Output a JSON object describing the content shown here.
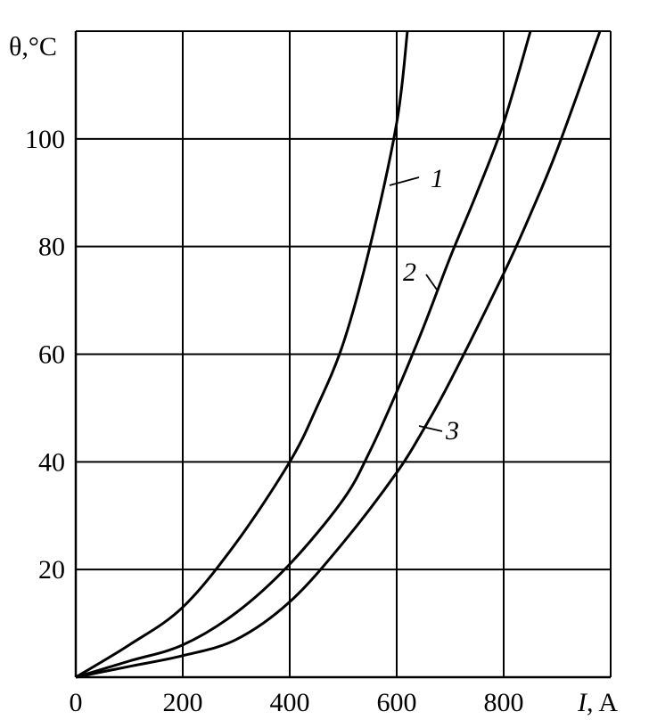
{
  "chart_data": {
    "type": "line",
    "xlabel_italic": "I",
    "xlabel_unit": ", A",
    "ylabel": "θ,°C",
    "xlim": [
      0,
      1000
    ],
    "ylim": [
      0,
      120
    ],
    "x_ticks": [
      "0",
      "200",
      "400",
      "600",
      "800"
    ],
    "y_ticks": [
      "20",
      "40",
      "60",
      "80",
      "100"
    ],
    "grid": true,
    "series": [
      {
        "name": "1",
        "x": [
          0,
          100,
          200,
          300,
          400,
          450,
          500,
          550,
          600,
          620
        ],
        "y": [
          0,
          6,
          13,
          25,
          40,
          50,
          62,
          80,
          103,
          120
        ]
      },
      {
        "name": "2",
        "x": [
          0,
          100,
          200,
          300,
          400,
          500,
          550,
          600,
          650,
          700,
          750,
          800,
          850
        ],
        "y": [
          0,
          3,
          6,
          12,
          21,
          33,
          42,
          53,
          65,
          78,
          90,
          103,
          120
        ]
      },
      {
        "name": "3",
        "x": [
          0,
          100,
          200,
          300,
          400,
          500,
          600,
          650,
          700,
          800,
          850,
          900,
          980
        ],
        "y": [
          0,
          2,
          4,
          7,
          14,
          25,
          38,
          46,
          55,
          75,
          86,
          98,
          120
        ]
      }
    ]
  }
}
